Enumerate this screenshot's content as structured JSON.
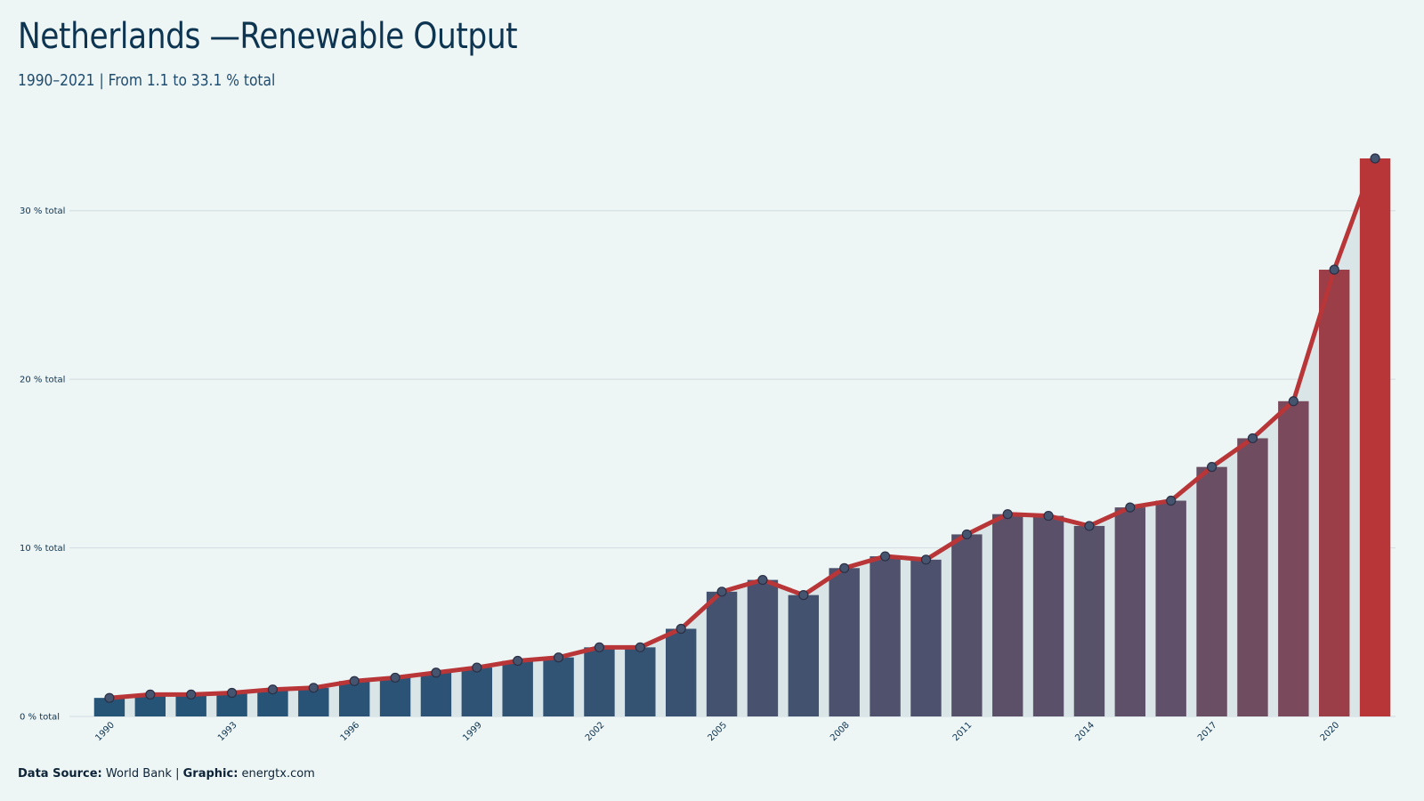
{
  "header": {
    "title": "Netherlands —Renewable Output",
    "subtitle": "1990–2021 | From 1.1 to 33.1 % total"
  },
  "footer": {
    "source_label": "Data Source:",
    "source_value": "World Bank",
    "separator": "|",
    "graphic_label": "Graphic:",
    "graphic_value": "energtx.com"
  },
  "colors": {
    "background": "#eef5f5",
    "bar_start": "#1f5478",
    "bar_mid": "#625068",
    "bar_end": "#b83538",
    "line": "#b83538",
    "area": "#d9e5e6",
    "marker_fill": "#46556f",
    "marker_stroke": "#2a2f45",
    "grid": "#d6e0e3"
  },
  "chart_data": {
    "type": "bar",
    "title": "Netherlands —Renewable Output",
    "subtitle": "1990–2021 | From 1.1 to 33.1 % total",
    "xlabel": "",
    "ylabel": "",
    "unit": "% total",
    "categories": [
      1990,
      1991,
      1992,
      1993,
      1994,
      1995,
      1996,
      1997,
      1998,
      1999,
      2000,
      2001,
      2002,
      2003,
      2004,
      2005,
      2006,
      2007,
      2008,
      2009,
      2010,
      2011,
      2012,
      2013,
      2014,
      2015,
      2016,
      2017,
      2018,
      2019,
      2020,
      2021
    ],
    "values": [
      1.1,
      1.3,
      1.3,
      1.4,
      1.6,
      1.7,
      2.1,
      2.3,
      2.6,
      2.9,
      3.3,
      3.5,
      4.1,
      4.1,
      5.2,
      7.4,
      8.1,
      7.2,
      8.8,
      9.5,
      9.3,
      10.8,
      12.0,
      11.9,
      11.3,
      12.4,
      12.8,
      14.8,
      16.5,
      18.7,
      26.5,
      33.1
    ],
    "overlay_line": true,
    "ylim": [
      0,
      33.1
    ],
    "y_ticks": [
      {
        "value": 0,
        "label": "0 % total"
      },
      {
        "value": 10,
        "label": "10 % total"
      },
      {
        "value": 20,
        "label": "20 % total"
      },
      {
        "value": 30,
        "label": "30 % total"
      }
    ],
    "x_tick_labels": [
      "1990",
      "1993",
      "1996",
      "1999",
      "2002",
      "2005",
      "2008",
      "2011",
      "2014",
      "2017",
      "2020"
    ],
    "grid": true,
    "legend": "none"
  }
}
